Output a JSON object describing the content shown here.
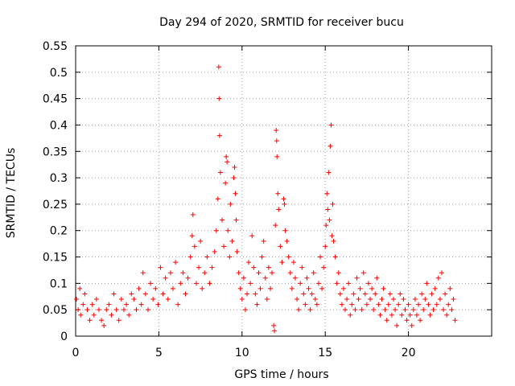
{
  "chart_data": {
    "type": "scatter",
    "title": "Day 294 of 2020, SRMTID for receiver bucu",
    "xlabel": "GPS time / hours",
    "ylabel": "SRMTID / TECUs",
    "xlim": [
      0,
      25
    ],
    "ylim": [
      0,
      0.55
    ],
    "xticks": [
      0,
      5,
      10,
      15,
      20
    ],
    "xtick_labels": [
      "0",
      "5",
      "10",
      "15",
      "20"
    ],
    "yticks": [
      0,
      0.05,
      0.1,
      0.15,
      0.2,
      0.25,
      0.3,
      0.35,
      0.4,
      0.45,
      0.5,
      0.55
    ],
    "ytick_labels": [
      "0",
      "0.05",
      "0.1",
      "0.15",
      "0.2",
      "0.25",
      "0.3",
      "0.35",
      "0.4",
      "0.45",
      "0.5",
      "0.55"
    ],
    "grid": true,
    "marker": "+",
    "color": "#ff0000",
    "series": [
      {
        "name": "SRMTID",
        "points": [
          [
            0.05,
            0.07
          ],
          [
            0.15,
            0.05
          ],
          [
            0.25,
            0.09
          ],
          [
            0.3,
            0.04
          ],
          [
            0.45,
            0.06
          ],
          [
            0.55,
            0.08
          ],
          [
            0.7,
            0.05
          ],
          [
            0.85,
            0.03
          ],
          [
            1.0,
            0.06
          ],
          [
            1.1,
            0.04
          ],
          [
            1.25,
            0.07
          ],
          [
            1.4,
            0.05
          ],
          [
            1.55,
            0.03
          ],
          [
            1.7,
            0.02
          ],
          [
            1.85,
            0.05
          ],
          [
            2.0,
            0.06
          ],
          [
            2.15,
            0.04
          ],
          [
            2.3,
            0.08
          ],
          [
            2.45,
            0.05
          ],
          [
            2.6,
            0.03
          ],
          [
            2.75,
            0.07
          ],
          [
            2.9,
            0.05
          ],
          [
            3.05,
            0.06
          ],
          [
            3.2,
            0.04
          ],
          [
            3.35,
            0.08
          ],
          [
            3.5,
            0.07
          ],
          [
            3.65,
            0.05
          ],
          [
            3.8,
            0.09
          ],
          [
            3.95,
            0.06
          ],
          [
            4.05,
            0.12
          ],
          [
            4.2,
            0.08
          ],
          [
            4.35,
            0.05
          ],
          [
            4.5,
            0.1
          ],
          [
            4.65,
            0.07
          ],
          [
            4.8,
            0.09
          ],
          [
            4.95,
            0.06
          ],
          [
            5.1,
            0.13
          ],
          [
            5.25,
            0.08
          ],
          [
            5.4,
            0.11
          ],
          [
            5.55,
            0.07
          ],
          [
            5.7,
            0.12
          ],
          [
            5.85,
            0.09
          ],
          [
            6.0,
            0.14
          ],
          [
            6.15,
            0.06
          ],
          [
            6.3,
            0.1
          ],
          [
            6.45,
            0.12
          ],
          [
            6.6,
            0.08
          ],
          [
            6.75,
            0.11
          ],
          [
            6.9,
            0.15
          ],
          [
            7.0,
            0.19
          ],
          [
            7.05,
            0.23
          ],
          [
            7.15,
            0.17
          ],
          [
            7.25,
            0.1
          ],
          [
            7.4,
            0.13
          ],
          [
            7.5,
            0.18
          ],
          [
            7.6,
            0.09
          ],
          [
            7.75,
            0.12
          ],
          [
            7.9,
            0.15
          ],
          [
            8.05,
            0.1
          ],
          [
            8.2,
            0.13
          ],
          [
            8.35,
            0.16
          ],
          [
            8.45,
            0.2
          ],
          [
            8.55,
            0.26
          ],
          [
            8.6,
            0.51
          ],
          [
            8.62,
            0.45
          ],
          [
            8.65,
            0.38
          ],
          [
            8.7,
            0.31
          ],
          [
            8.8,
            0.22
          ],
          [
            8.9,
            0.17
          ],
          [
            9.0,
            0.29
          ],
          [
            9.05,
            0.34
          ],
          [
            9.1,
            0.33
          ],
          [
            9.15,
            0.2
          ],
          [
            9.25,
            0.15
          ],
          [
            9.3,
            0.25
          ],
          [
            9.4,
            0.18
          ],
          [
            9.5,
            0.3
          ],
          [
            9.55,
            0.32
          ],
          [
            9.6,
            0.27
          ],
          [
            9.65,
            0.22
          ],
          [
            9.7,
            0.16
          ],
          [
            9.8,
            0.12
          ],
          [
            9.9,
            0.09
          ],
          [
            10.0,
            0.07
          ],
          [
            10.1,
            0.11
          ],
          [
            10.2,
            0.05
          ],
          [
            10.3,
            0.08
          ],
          [
            10.4,
            0.14
          ],
          [
            10.5,
            0.1
          ],
          [
            10.6,
            0.19
          ],
          [
            10.7,
            0.13
          ],
          [
            10.8,
            0.08
          ],
          [
            10.9,
            0.06
          ],
          [
            11.0,
            0.12
          ],
          [
            11.1,
            0.09
          ],
          [
            11.2,
            0.15
          ],
          [
            11.3,
            0.18
          ],
          [
            11.4,
            0.11
          ],
          [
            11.5,
            0.07
          ],
          [
            11.6,
            0.13
          ],
          [
            11.7,
            0.09
          ],
          [
            11.8,
            0.12
          ],
          [
            11.9,
            0.02
          ],
          [
            11.95,
            0.01
          ],
          [
            12.0,
            0.21
          ],
          [
            12.05,
            0.39
          ],
          [
            12.08,
            0.37
          ],
          [
            12.1,
            0.34
          ],
          [
            12.15,
            0.27
          ],
          [
            12.2,
            0.24
          ],
          [
            12.3,
            0.17
          ],
          [
            12.4,
            0.14
          ],
          [
            12.5,
            0.26
          ],
          [
            12.55,
            0.25
          ],
          [
            12.6,
            0.2
          ],
          [
            12.7,
            0.18
          ],
          [
            12.8,
            0.15
          ],
          [
            12.9,
            0.12
          ],
          [
            13.0,
            0.09
          ],
          [
            13.1,
            0.14
          ],
          [
            13.2,
            0.11
          ],
          [
            13.3,
            0.07
          ],
          [
            13.4,
            0.05
          ],
          [
            13.5,
            0.1
          ],
          [
            13.6,
            0.13
          ],
          [
            13.7,
            0.08
          ],
          [
            13.8,
            0.06
          ],
          [
            13.9,
            0.11
          ],
          [
            14.0,
            0.09
          ],
          [
            14.1,
            0.05
          ],
          [
            14.2,
            0.08
          ],
          [
            14.3,
            0.12
          ],
          [
            14.4,
            0.07
          ],
          [
            14.5,
            0.06
          ],
          [
            14.6,
            0.1
          ],
          [
            14.7,
            0.15
          ],
          [
            14.8,
            0.09
          ],
          [
            14.9,
            0.13
          ],
          [
            15.0,
            0.17
          ],
          [
            15.05,
            0.21
          ],
          [
            15.1,
            0.27
          ],
          [
            15.15,
            0.24
          ],
          [
            15.2,
            0.31
          ],
          [
            15.25,
            0.22
          ],
          [
            15.3,
            0.36
          ],
          [
            15.35,
            0.4
          ],
          [
            15.4,
            0.19
          ],
          [
            15.45,
            0.25
          ],
          [
            15.5,
            0.18
          ],
          [
            15.6,
            0.15
          ],
          [
            15.7,
            0.1
          ],
          [
            15.8,
            0.12
          ],
          [
            15.9,
            0.08
          ],
          [
            16.0,
            0.06
          ],
          [
            16.1,
            0.09
          ],
          [
            16.2,
            0.05
          ],
          [
            16.3,
            0.07
          ],
          [
            16.4,
            0.1
          ],
          [
            16.5,
            0.04
          ],
          [
            16.6,
            0.06
          ],
          [
            16.7,
            0.08
          ],
          [
            16.8,
            0.05
          ],
          [
            16.9,
            0.11
          ],
          [
            17.0,
            0.07
          ],
          [
            17.1,
            0.09
          ],
          [
            17.2,
            0.05
          ],
          [
            17.3,
            0.12
          ],
          [
            17.4,
            0.08
          ],
          [
            17.5,
            0.06
          ],
          [
            17.6,
            0.1
          ],
          [
            17.7,
            0.07
          ],
          [
            17.8,
            0.09
          ],
          [
            17.9,
            0.05
          ],
          [
            18.0,
            0.08
          ],
          [
            18.1,
            0.11
          ],
          [
            18.2,
            0.06
          ],
          [
            18.3,
            0.04
          ],
          [
            18.4,
            0.07
          ],
          [
            18.5,
            0.09
          ],
          [
            18.6,
            0.05
          ],
          [
            18.7,
            0.03
          ],
          [
            18.8,
            0.06
          ],
          [
            18.9,
            0.08
          ],
          [
            19.0,
            0.04
          ],
          [
            19.1,
            0.07
          ],
          [
            19.2,
            0.05
          ],
          [
            19.3,
            0.02
          ],
          [
            19.4,
            0.06
          ],
          [
            19.5,
            0.08
          ],
          [
            19.6,
            0.04
          ],
          [
            19.7,
            0.07
          ],
          [
            19.8,
            0.05
          ],
          [
            19.9,
            0.03
          ],
          [
            20.0,
            0.06
          ],
          [
            20.1,
            0.04
          ],
          [
            20.2,
            0.02
          ],
          [
            20.3,
            0.05
          ],
          [
            20.4,
            0.07
          ],
          [
            20.5,
            0.04
          ],
          [
            20.6,
            0.06
          ],
          [
            20.7,
            0.03
          ],
          [
            20.8,
            0.08
          ],
          [
            20.9,
            0.05
          ],
          [
            21.0,
            0.07
          ],
          [
            21.1,
            0.1
          ],
          [
            21.2,
            0.06
          ],
          [
            21.3,
            0.04
          ],
          [
            21.4,
            0.08
          ],
          [
            21.5,
            0.05
          ],
          [
            21.6,
            0.09
          ],
          [
            21.7,
            0.06
          ],
          [
            21.8,
            0.11
          ],
          [
            21.9,
            0.07
          ],
          [
            22.0,
            0.12
          ],
          [
            22.1,
            0.05
          ],
          [
            22.2,
            0.08
          ],
          [
            22.3,
            0.04
          ],
          [
            22.4,
            0.06
          ],
          [
            22.5,
            0.09
          ],
          [
            22.6,
            0.05
          ],
          [
            22.7,
            0.07
          ],
          [
            22.8,
            0.03
          ]
        ]
      }
    ]
  }
}
